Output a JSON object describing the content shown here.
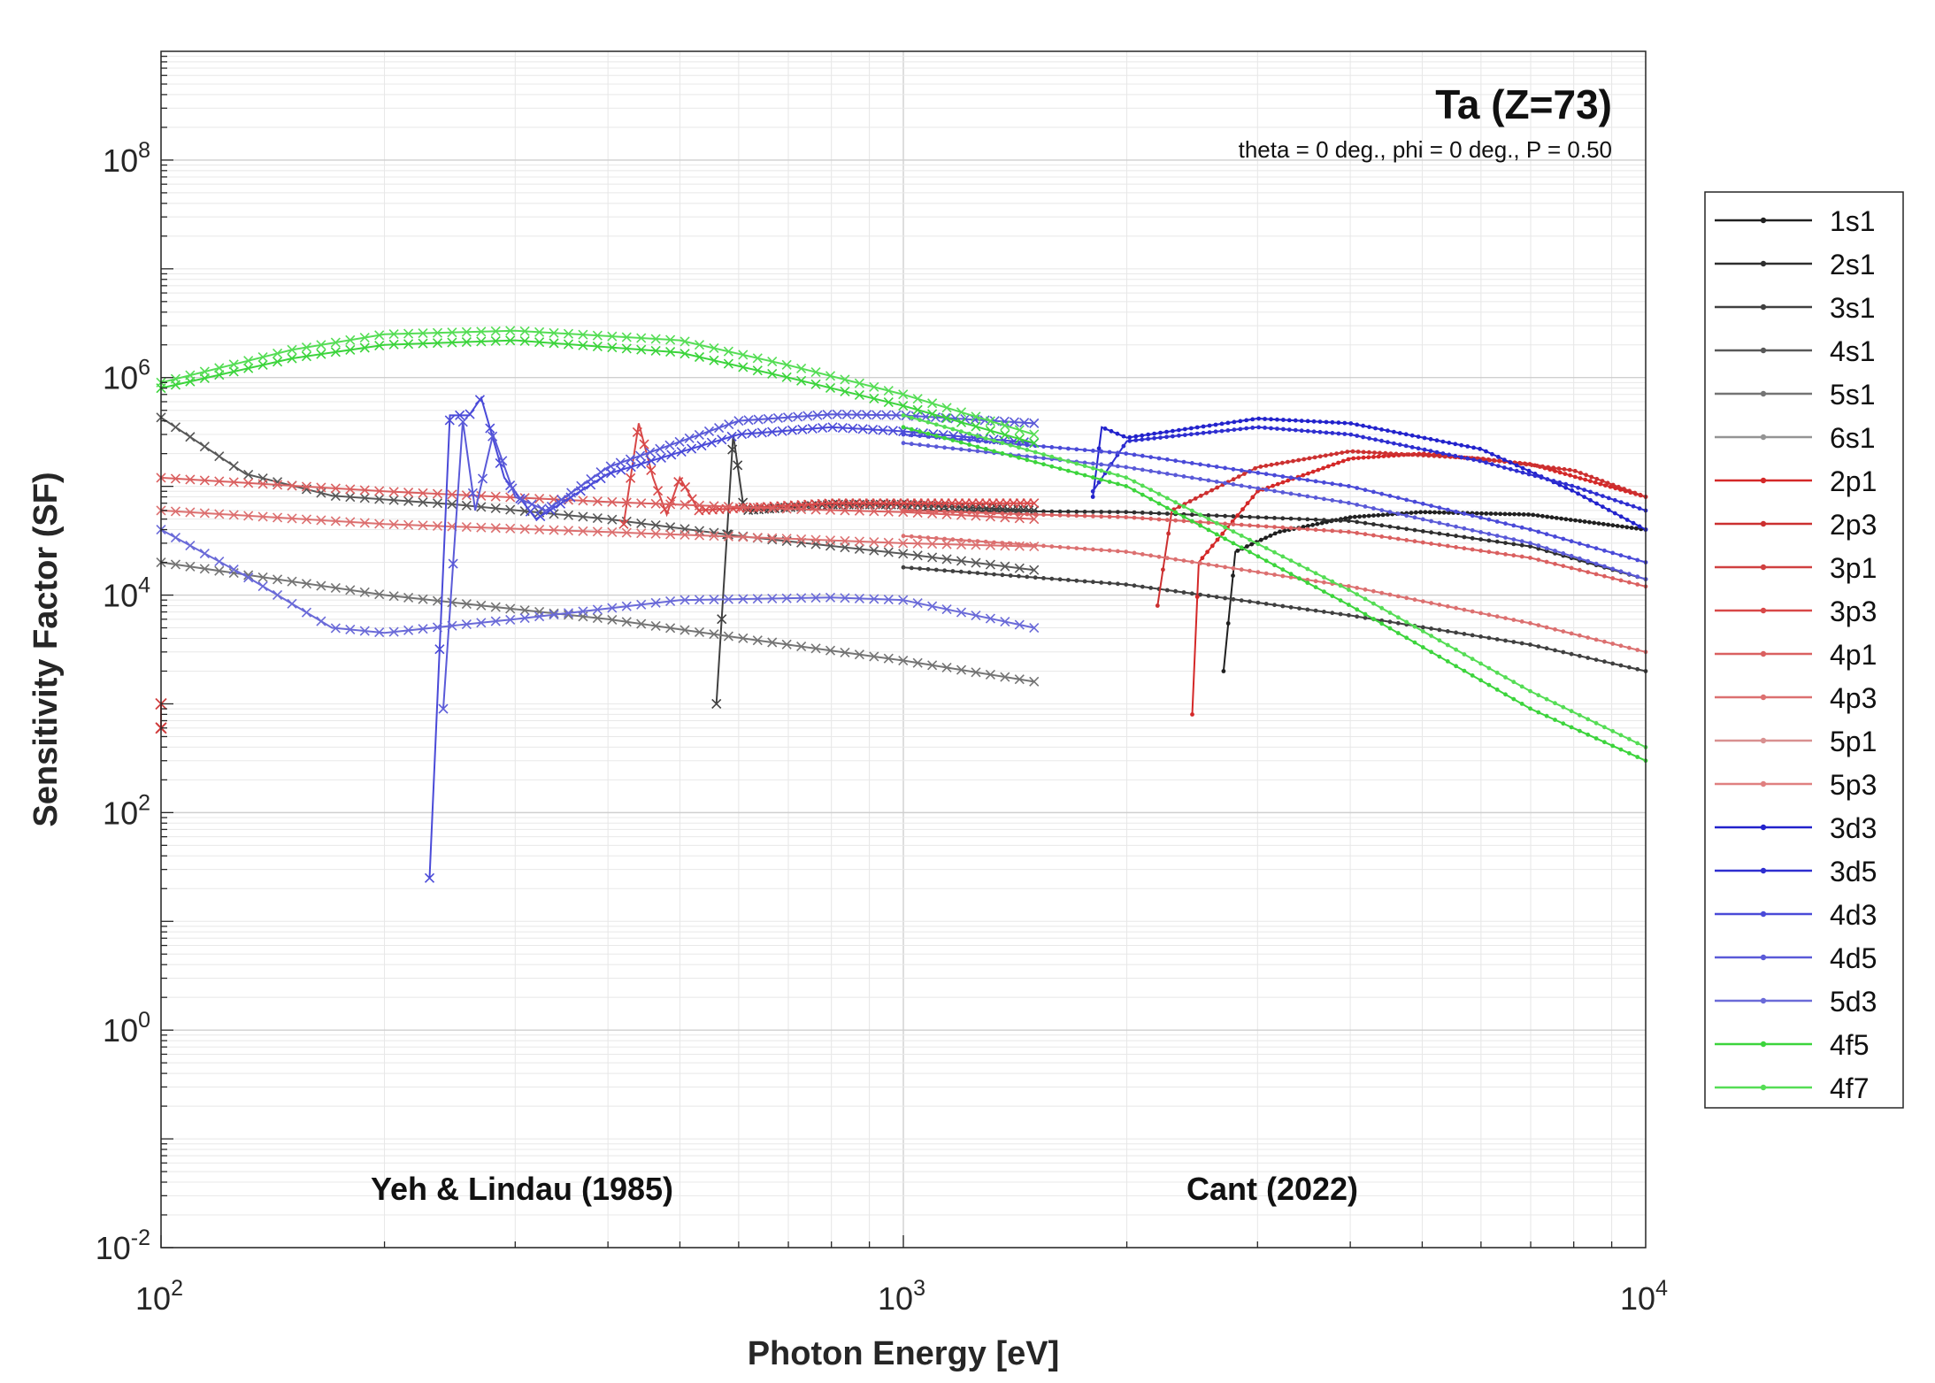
{
  "chart_data": {
    "type": "line",
    "title": "Ta (Z=73)",
    "subtitle": "theta = 0 deg., phi = 0 deg., P = 0.50",
    "xlabel": "Photon Energy [eV]",
    "ylabel": "Sensitivity Factor (SF)",
    "xscale": "log",
    "yscale": "log",
    "xlim": [
      100,
      10000
    ],
    "ylim": [
      0.01,
      1000000000
    ],
    "x_ticks": [
      {
        "value": 100,
        "base": "10",
        "exp": "2"
      },
      {
        "value": 1000,
        "base": "10",
        "exp": "3"
      },
      {
        "value": 10000,
        "base": "10",
        "exp": "4"
      }
    ],
    "y_ticks": [
      {
        "value": 0.01,
        "base": "10",
        "exp": "-2"
      },
      {
        "value": 1,
        "base": "10",
        "exp": "0"
      },
      {
        "value": 100,
        "base": "10",
        "exp": "2"
      },
      {
        "value": 10000,
        "base": "10",
        "exp": "4"
      },
      {
        "value": 1000000,
        "base": "10",
        "exp": "6"
      },
      {
        "value": 100000000,
        "base": "10",
        "exp": "8"
      }
    ],
    "annotations": [
      {
        "text": "Yeh & Lindau (1985)",
        "x": 230,
        "y": 0.045
      },
      {
        "text": "Cant (2022)",
        "x": 2400,
        "y": 0.045
      }
    ],
    "grid": true,
    "legend_position": "outside-right",
    "series": [
      {
        "name": "1s1",
        "color": "#202020",
        "yeh": [],
        "cant": [
          [
            2700,
            2000
          ],
          [
            2800,
            25000
          ],
          [
            3200,
            38000
          ],
          [
            4000,
            52000
          ],
          [
            5000,
            58000
          ],
          [
            7000,
            55000
          ],
          [
            10000,
            40000
          ]
        ]
      },
      {
        "name": "2s1",
        "color": "#2e2e2e",
        "yeh": [],
        "cant": [
          [
            1000,
            60000
          ],
          [
            2000,
            58000
          ],
          [
            4000,
            48000
          ],
          [
            7000,
            28000
          ],
          [
            10000,
            14000
          ]
        ]
      },
      {
        "name": "3s1",
        "color": "#404040",
        "yeh": [
          [
            560,
            1000
          ],
          [
            590,
            300000
          ],
          [
            610,
            60000
          ],
          [
            800,
            68000
          ],
          [
            1000,
            68000
          ],
          [
            1500,
            60000
          ]
        ],
        "cant": [
          [
            1000,
            18000
          ],
          [
            2000,
            12500
          ],
          [
            4000,
            6500
          ],
          [
            7000,
            3500
          ],
          [
            10000,
            2000
          ]
        ]
      },
      {
        "name": "4s1",
        "color": "#585858",
        "yeh": [
          [
            100,
            430000
          ],
          [
            130,
            130000
          ],
          [
            170,
            82000
          ],
          [
            250,
            68000
          ],
          [
            400,
            50000
          ],
          [
            600,
            35000
          ],
          [
            1000,
            24000
          ],
          [
            1500,
            17000
          ]
        ],
        "cant": []
      },
      {
        "name": "5s1",
        "color": "#747474",
        "yeh": [
          [
            100,
            20000
          ],
          [
            200,
            10000
          ],
          [
            400,
            6000
          ],
          [
            700,
            3500
          ],
          [
            1000,
            2500
          ],
          [
            1500,
            1600
          ]
        ],
        "cant": []
      },
      {
        "name": "6s1",
        "color": "#949494",
        "yeh": [],
        "cant": []
      },
      {
        "name": "2p1",
        "color": "#d42828",
        "yeh": [],
        "cant": [
          [
            2450,
            800
          ],
          [
            2500,
            20000
          ],
          [
            3000,
            90000
          ],
          [
            4000,
            180000
          ],
          [
            5000,
            200000
          ],
          [
            7000,
            160000
          ],
          [
            10000,
            80000
          ]
        ]
      },
      {
        "name": "2p3",
        "color": "#cc3030",
        "yeh": [],
        "cant": [
          [
            2200,
            8000
          ],
          [
            2300,
            60000
          ],
          [
            3000,
            150000
          ],
          [
            4000,
            210000
          ],
          [
            6000,
            180000
          ],
          [
            8000,
            140000
          ],
          [
            10000,
            80000
          ]
        ]
      },
      {
        "name": "3p1",
        "color": "#d04040",
        "yeh": [
          [
            100,
            600
          ],
          [
            100,
            1000
          ]
        ],
        "cant": []
      },
      {
        "name": "3p3",
        "color": "#d84848",
        "yeh": [
          [
            420,
            45000
          ],
          [
            440,
            380000
          ],
          [
            460,
            120000
          ],
          [
            480,
            55000
          ],
          [
            500,
            120000
          ],
          [
            530,
            60000
          ],
          [
            800,
            70000
          ],
          [
            1500,
            70000
          ]
        ],
        "cant": []
      },
      {
        "name": "4p1",
        "color": "#da6060",
        "yeh": [
          [
            100,
            120000
          ],
          [
            200,
            90000
          ],
          [
            400,
            72000
          ],
          [
            700,
            62000
          ],
          [
            1000,
            58000
          ],
          [
            1500,
            50000
          ]
        ],
        "cant": [
          [
            1000,
            60000
          ],
          [
            2000,
            52000
          ],
          [
            4000,
            38000
          ],
          [
            7000,
            22000
          ],
          [
            10000,
            12000
          ]
        ]
      },
      {
        "name": "4p3",
        "color": "#dc7070",
        "yeh": [
          [
            100,
            60000
          ],
          [
            200,
            45000
          ],
          [
            400,
            38000
          ],
          [
            700,
            33000
          ],
          [
            1000,
            30000
          ],
          [
            1500,
            28000
          ]
        ],
        "cant": [
          [
            1000,
            35000
          ],
          [
            2000,
            25000
          ],
          [
            4000,
            12000
          ],
          [
            7000,
            5500
          ],
          [
            10000,
            3000
          ]
        ]
      },
      {
        "name": "5p1",
        "color": "#d89090",
        "yeh": [],
        "cant": []
      },
      {
        "name": "5p3",
        "color": "#e08080",
        "yeh": [],
        "cant": []
      },
      {
        "name": "3d3",
        "color": "#2222cc",
        "yeh": [],
        "cant": [
          [
            1800,
            80000
          ],
          [
            1850,
            350000
          ],
          [
            2000,
            280000
          ],
          [
            3000,
            420000
          ],
          [
            4000,
            380000
          ],
          [
            6000,
            220000
          ],
          [
            8000,
            90000
          ],
          [
            10000,
            40000
          ]
        ]
      },
      {
        "name": "3d5",
        "color": "#2e2ed0",
        "yeh": [],
        "cant": [
          [
            1800,
            90000
          ],
          [
            2000,
            260000
          ],
          [
            3000,
            350000
          ],
          [
            4000,
            300000
          ],
          [
            6000,
            170000
          ],
          [
            8000,
            100000
          ],
          [
            10000,
            60000
          ]
        ]
      },
      {
        "name": "4d3",
        "color": "#4a4ad8",
        "yeh": [
          [
            230,
            25
          ],
          [
            245,
            450000
          ],
          [
            260,
            450000
          ],
          [
            270,
            650000
          ],
          [
            290,
            120000
          ],
          [
            320,
            50000
          ],
          [
            400,
            130000
          ],
          [
            600,
            300000
          ],
          [
            800,
            350000
          ],
          [
            1000,
            320000
          ],
          [
            1500,
            250000
          ]
        ],
        "cant": [
          [
            1000,
            300000
          ],
          [
            2000,
            200000
          ],
          [
            4000,
            100000
          ],
          [
            7000,
            40000
          ],
          [
            10000,
            20000
          ]
        ]
      },
      {
        "name": "4d5",
        "color": "#5a5ad8",
        "yeh": [
          [
            240,
            900
          ],
          [
            255,
            400000
          ],
          [
            265,
            60000
          ],
          [
            280,
            300000
          ],
          [
            300,
            80000
          ],
          [
            330,
            60000
          ],
          [
            400,
            150000
          ],
          [
            600,
            400000
          ],
          [
            800,
            460000
          ],
          [
            1000,
            450000
          ],
          [
            1500,
            380000
          ]
        ],
        "cant": [
          [
            1000,
            250000
          ],
          [
            2000,
            150000
          ],
          [
            4000,
            70000
          ],
          [
            7000,
            30000
          ],
          [
            10000,
            14000
          ]
        ]
      },
      {
        "name": "5d3",
        "color": "#6a6ad8",
        "yeh": [
          [
            100,
            40000
          ],
          [
            130,
            15000
          ],
          [
            170,
            5000
          ],
          [
            200,
            4500
          ],
          [
            300,
            6000
          ],
          [
            500,
            9000
          ],
          [
            800,
            9500
          ],
          [
            1000,
            9000
          ],
          [
            1500,
            5000
          ]
        ],
        "cant": []
      },
      {
        "name": "4f5",
        "color": "#3cd43c",
        "yeh": [
          [
            100,
            800000
          ],
          [
            150,
            1500000
          ],
          [
            200,
            2000000
          ],
          [
            300,
            2200000
          ],
          [
            500,
            1700000
          ],
          [
            700,
            1000000
          ],
          [
            1000,
            550000
          ],
          [
            1500,
            250000
          ]
        ],
        "cant": [
          [
            1000,
            350000
          ],
          [
            2000,
            100000
          ],
          [
            4000,
            8000
          ],
          [
            7000,
            900
          ],
          [
            10000,
            300
          ]
        ]
      },
      {
        "name": "4f7",
        "color": "#55dd55",
        "yeh": [
          [
            100,
            900000
          ],
          [
            150,
            1800000
          ],
          [
            200,
            2500000
          ],
          [
            300,
            2700000
          ],
          [
            500,
            2200000
          ],
          [
            700,
            1300000
          ],
          [
            1000,
            700000
          ],
          [
            1500,
            300000
          ]
        ],
        "cant": [
          [
            1000,
            450000
          ],
          [
            2000,
            120000
          ],
          [
            4000,
            11000
          ],
          [
            7000,
            1300
          ],
          [
            10000,
            400
          ]
        ]
      }
    ]
  }
}
